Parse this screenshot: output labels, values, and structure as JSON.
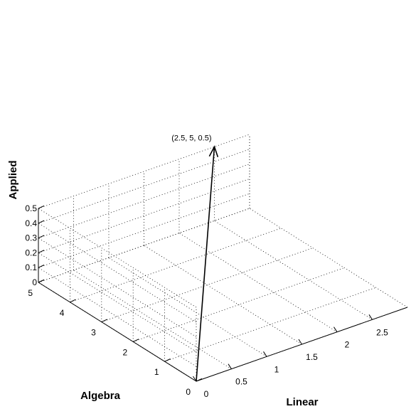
{
  "chart_data": {
    "type": "3d-vector",
    "xlabel": "Linear",
    "ylabel": "Algebra",
    "zlabel": "Applied",
    "xlim": [
      0,
      3
    ],
    "ylim": [
      0,
      5
    ],
    "zlim": [
      0,
      0.5
    ],
    "x_ticks": [
      "0",
      "0.5",
      "1",
      "1.5",
      "2",
      "2.5"
    ],
    "y_ticks": [
      "0",
      "1",
      "2",
      "3",
      "4",
      "5"
    ],
    "z_ticks": [
      "0",
      "0.1",
      "0.2",
      "0.3",
      "0.4",
      "0.5"
    ],
    "grid": true,
    "vector": {
      "from": [
        0,
        0,
        0
      ],
      "to": [
        2.5,
        5,
        0.5
      ],
      "label": "(2.5, 5, 0.5)"
    }
  }
}
